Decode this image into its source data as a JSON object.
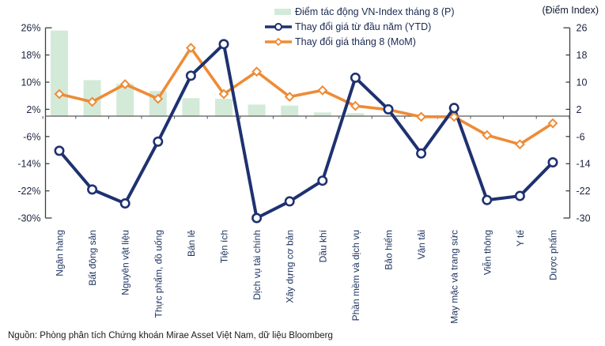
{
  "chart_data": {
    "type": "combo-bar-line",
    "categories": [
      "Ngân hàng",
      "Bất động sản",
      "Nguyên vật liệu",
      "Thực phẩm, đồ uống",
      "Bán lẻ",
      "Tiện ích",
      "Dịch vụ tài chính",
      "Xây dựng cơ bản",
      "Dầu khí",
      "Phần mềm và dịch vụ",
      "Bảo hiểm",
      "Vận tải",
      "May mặc và trang sức",
      "Viễn thông",
      "Y tế",
      "Dược phẩm"
    ],
    "series": [
      {
        "name": "Điểm tác động VN-Index tháng 8 (P)",
        "type": "bar",
        "axis": "right",
        "color": "#d4ead9",
        "values": [
          25.2,
          10.6,
          9.5,
          7.4,
          5.3,
          5.1,
          3.4,
          3.1,
          1.1,
          0.9,
          0,
          0,
          0,
          0,
          0,
          0
        ]
      },
      {
        "name": "Thay đổi giá từ đầu năm (YTD)",
        "type": "line",
        "marker": "circle",
        "axis": "left",
        "color": "#1e3170",
        "values": [
          -10.2,
          -21.6,
          -25.7,
          -7.5,
          11.9,
          21.2,
          -30,
          -25.1,
          -19,
          11.3,
          2,
          -11,
          2.4,
          -24.7,
          -23.5,
          -13.6
        ]
      },
      {
        "name": "Thay đổi giá tháng 8 (MoM)",
        "type": "line",
        "marker": "diamond",
        "axis": "left",
        "color": "#ee8b36",
        "values": [
          6.5,
          4.2,
          9.4,
          5.1,
          20.1,
          6.5,
          13.1,
          5.7,
          7.6,
          3,
          1.9,
          -0.2,
          -0.2,
          -5.6,
          -8.3,
          -2.1
        ]
      }
    ],
    "left_axis": {
      "ticks": [
        26,
        18,
        10,
        2,
        -6,
        -14,
        -22,
        -30
      ],
      "unit": "%"
    },
    "right_axis": {
      "ticks": [
        26,
        18,
        10,
        2,
        -6,
        -14,
        -22,
        -30
      ],
      "title": "(Điểm Index)"
    },
    "ylim": [
      -30,
      26
    ],
    "grid": false,
    "legend_position": "top"
  },
  "source": "Nguồn: Phòng phân tích Chứng khoán Mirae Asset Việt Nam, dữ liệu Bloomberg"
}
